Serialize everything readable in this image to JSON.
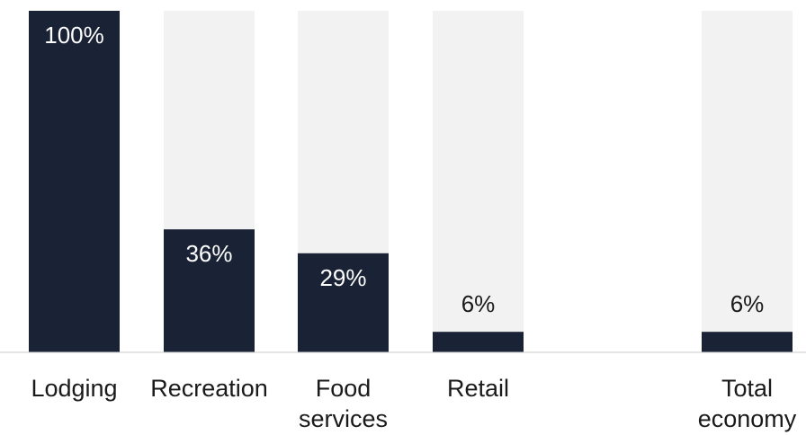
{
  "chart_data": {
    "type": "bar",
    "categories": [
      [
        "Lodging"
      ],
      [
        "Recreation"
      ],
      [
        "Food",
        "services"
      ],
      [
        "Retail"
      ],
      [],
      [
        "Total",
        "economy"
      ]
    ],
    "values": [
      100,
      36,
      29,
      6,
      null,
      6
    ],
    "labels": [
      "100%",
      "36%",
      "29%",
      "6%",
      "",
      "6%"
    ],
    "ylim": [
      0,
      100
    ],
    "colors": {
      "bar": "#1a2235",
      "track": "#f2f2f2",
      "axis": "#cccccc"
    },
    "grid": false,
    "legend": "none"
  }
}
